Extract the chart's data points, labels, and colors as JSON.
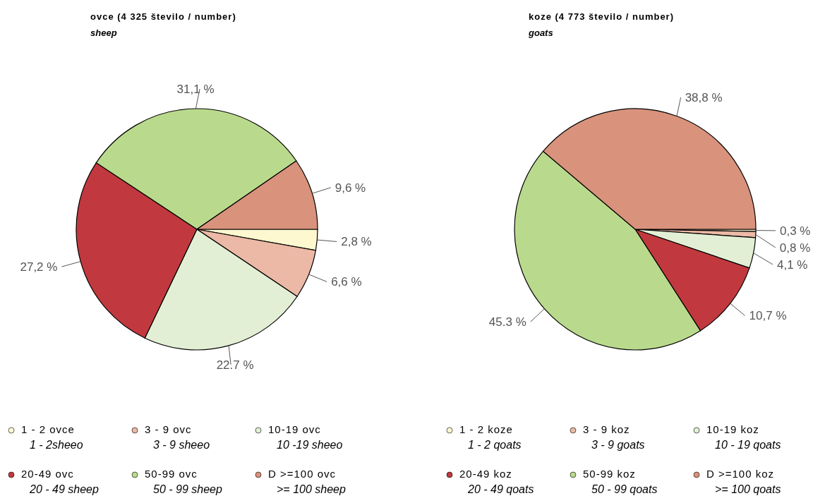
{
  "chart_data": [
    {
      "type": "pie",
      "title": "ovce (4 325 število / number)",
      "subtitle": "sheep",
      "categories": [
        "1 - 2 ovce\n1 - 2sheeo",
        "3 - 9 ovc\n3 - 9 sheeo",
        "10-19 ovc\n10 -19 sheeo",
        "20-49 ovc\n20 - 49 sheep",
        "50-99 ovc\n50 - 99 sheep",
        "D >=100 ovc\n>= 100 sheep"
      ],
      "values": [
        2.8,
        6.6,
        22.7,
        27.2,
        31.1,
        9.6
      ],
      "colors": [
        "#fdf8cf",
        "#ebb9a5",
        "#e2efd4",
        "#c1393e",
        "#b9da8c",
        "#d9927c"
      ],
      "value_labels": [
        "2,8 %",
        "6,6 %",
        "22.7 %",
        "27,2 %",
        "31,1 %",
        "9,6 %"
      ],
      "legend": "bottom"
    },
    {
      "type": "pie",
      "title": "koze (4 773 število / number)",
      "subtitle": "goats",
      "categories": [
        "1 - 2 koze\n1 - 2 qoats",
        "3 - 9 koz\n3 - 9 goats",
        "10-19 koz\n10 - 19 qoats",
        "20-49 koz\n20 - 49 qoats",
        "50-99 koz\n50 - 99 qoats",
        "D >=100 koz\n>= 100 qoats"
      ],
      "values": [
        0.3,
        0.8,
        4.1,
        10.7,
        45.3,
        38.8
      ],
      "colors": [
        "#fdf8cf",
        "#ebb9a5",
        "#e2efd4",
        "#c1393e",
        "#b9da8c",
        "#d9927c"
      ],
      "value_labels": [
        "0,3 %",
        "0,8 %",
        "4,1 %",
        "10,7 %",
        "45.3 %",
        "38,8 %"
      ],
      "legend": "bottom"
    }
  ]
}
